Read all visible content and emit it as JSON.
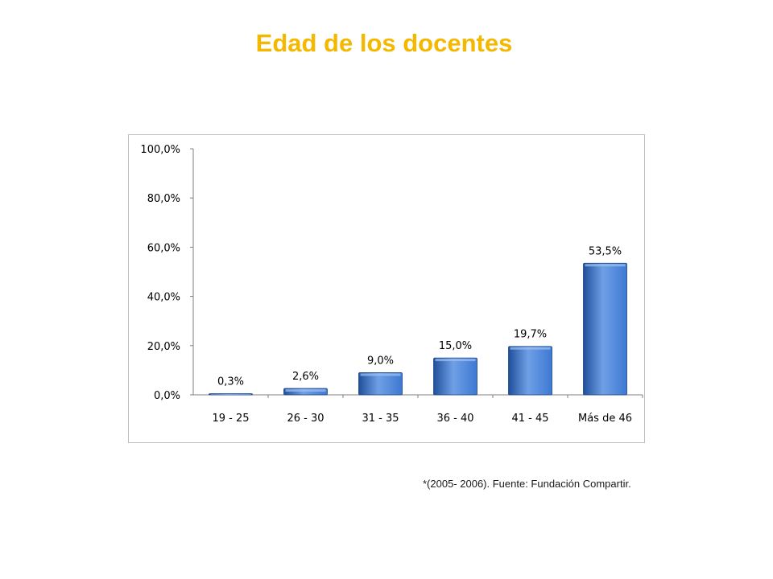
{
  "colors": {
    "title": "#F5B800",
    "bar_top": "#6FA0E6",
    "bar_mid": "#3D78D2",
    "bar_bottom": "#1F4F9A",
    "bar_edge": "#1B4488",
    "axis": "#808080",
    "frame": "#BDBDBD"
  },
  "page": {
    "title": "Edad de los docentes",
    "source_note": "*(2005- 2006). Fuente: Fundación Compartir."
  },
  "chart_data": {
    "type": "bar",
    "categories": [
      "19 - 25",
      "26 - 30",
      "31 - 35",
      "36 - 40",
      "41 - 45",
      "Más de 46"
    ],
    "values": [
      0.3,
      2.6,
      9.0,
      15.0,
      19.7,
      53.5
    ],
    "value_labels": [
      "0,3%",
      "2,6%",
      "9,0%",
      "15,0%",
      "19,7%",
      "53,5%"
    ],
    "y_ticks": [
      0,
      20,
      40,
      60,
      80,
      100
    ],
    "y_tick_labels": [
      "0,0%",
      "20,0%",
      "40,0%",
      "60,0%",
      "80,0%",
      "100,0%"
    ],
    "ylim": [
      0,
      100
    ],
    "grid": false,
    "legend": "none"
  }
}
